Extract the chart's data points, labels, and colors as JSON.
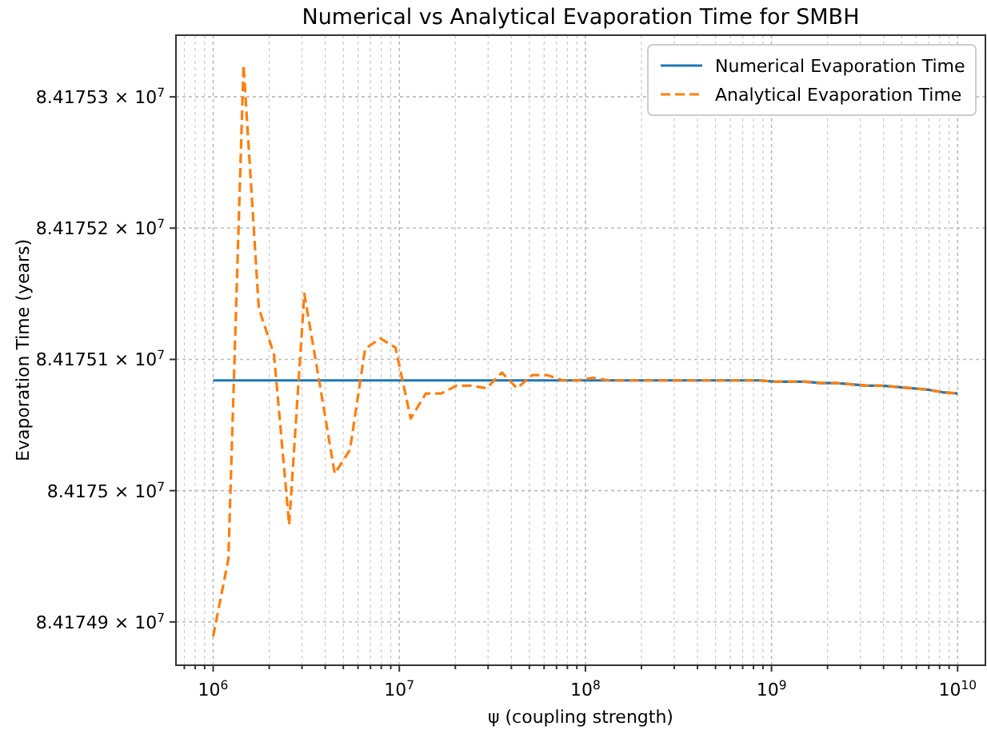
{
  "chart_data": {
    "type": "line",
    "title": "Numerical vs Analytical Evaporation Time for SMBH",
    "xlabel": "ψ (coupling strength)",
    "ylabel": "Evaporation Time (years)",
    "log": "xy",
    "grid": true,
    "legend": "top right",
    "xlim": [
      631000,
      14100000000
    ],
    "ylim": [
      84174867,
      84175347
    ],
    "xticks": [
      {
        "value": 1000000,
        "label": "10$^{6}$"
      },
      {
        "value": 10000000,
        "label": "10$^{7}$"
      },
      {
        "value": 100000000,
        "label": "10$^{8}$"
      },
      {
        "value": 1000000000,
        "label": "10$^{9}$"
      },
      {
        "value": 10000000000,
        "label": "10$^{10}$"
      }
    ],
    "yticks": [
      {
        "value": 84174900,
        "label": "8.41749 × 10$^{7}$"
      },
      {
        "value": 84175000,
        "label": "8.4175 × 10$^{7}$"
      },
      {
        "value": 84175100,
        "label": "8.41751 × 10$^{7}$"
      },
      {
        "value": 84175200,
        "label": "8.41752 × 10$^{7}$"
      },
      {
        "value": 84175300,
        "label": "8.41753 × 10$^{7}$"
      }
    ],
    "x": [
      1000000,
      1207000,
      1456000,
      1758000,
      2121000,
      2560000,
      3089000,
      3728000,
      4498000,
      5429000,
      6551000,
      7906000,
      9541000,
      11510000,
      13890000,
      16770000,
      20240000,
      24420000,
      29470000,
      35560000,
      42920000,
      51790000,
      62510000,
      75430000,
      91030000,
      109900000,
      132600000,
      160000000,
      193100000,
      233000000,
      281200000,
      339300000,
      409500000,
      494200000,
      596400000,
      719700000,
      868500000,
      1048000000,
      1265000000,
      1526000000,
      1842000000,
      2223000000,
      2683000000,
      3237000000,
      3907000000,
      4715000000,
      5690000000,
      6866000000,
      8286000000,
      10000000000
    ],
    "series": [
      {
        "name": "Numerical Evaporation Time",
        "color": "#1f77b4",
        "line_style": "solid",
        "values": [
          84175084,
          84175084,
          84175084,
          84175084,
          84175084,
          84175084,
          84175084,
          84175084,
          84175084,
          84175084,
          84175084,
          84175084,
          84175084,
          84175084,
          84175084,
          84175084,
          84175084,
          84175084,
          84175084,
          84175084,
          84175084,
          84175084,
          84175084,
          84175084,
          84175084,
          84175084,
          84175084,
          84175084,
          84175084,
          84175084,
          84175084,
          84175084,
          84175084,
          84175084,
          84175084,
          84175084,
          84175084,
          84175083,
          84175083,
          84175083,
          84175082,
          84175082,
          84175081,
          84175080,
          84175080,
          84175079,
          84175078,
          84175077,
          84175075,
          84175074
        ]
      },
      {
        "name": "Analytical Evaporation Time",
        "color": "#ff7f0e",
        "line_style": "dashed",
        "values": [
          84174889,
          84174948,
          84175324,
          84175139,
          84175104,
          84174974,
          84175150,
          84175082,
          84175013,
          84175031,
          84175108,
          84175116,
          84175109,
          84175055,
          84175074,
          84175074,
          84175080,
          84175080,
          84175078,
          84175090,
          84175078,
          84175088,
          84175088,
          84175084,
          84175084,
          84175086,
          84175084,
          84175084,
          84175084,
          84175084,
          84175084,
          84175084,
          84175084,
          84175084,
          84175084,
          84175084,
          84175084,
          84175083,
          84175083,
          84175083,
          84175082,
          84175082,
          84175081,
          84175080,
          84175080,
          84175079,
          84175078,
          84175077,
          84175075,
          84175074
        ]
      }
    ]
  }
}
